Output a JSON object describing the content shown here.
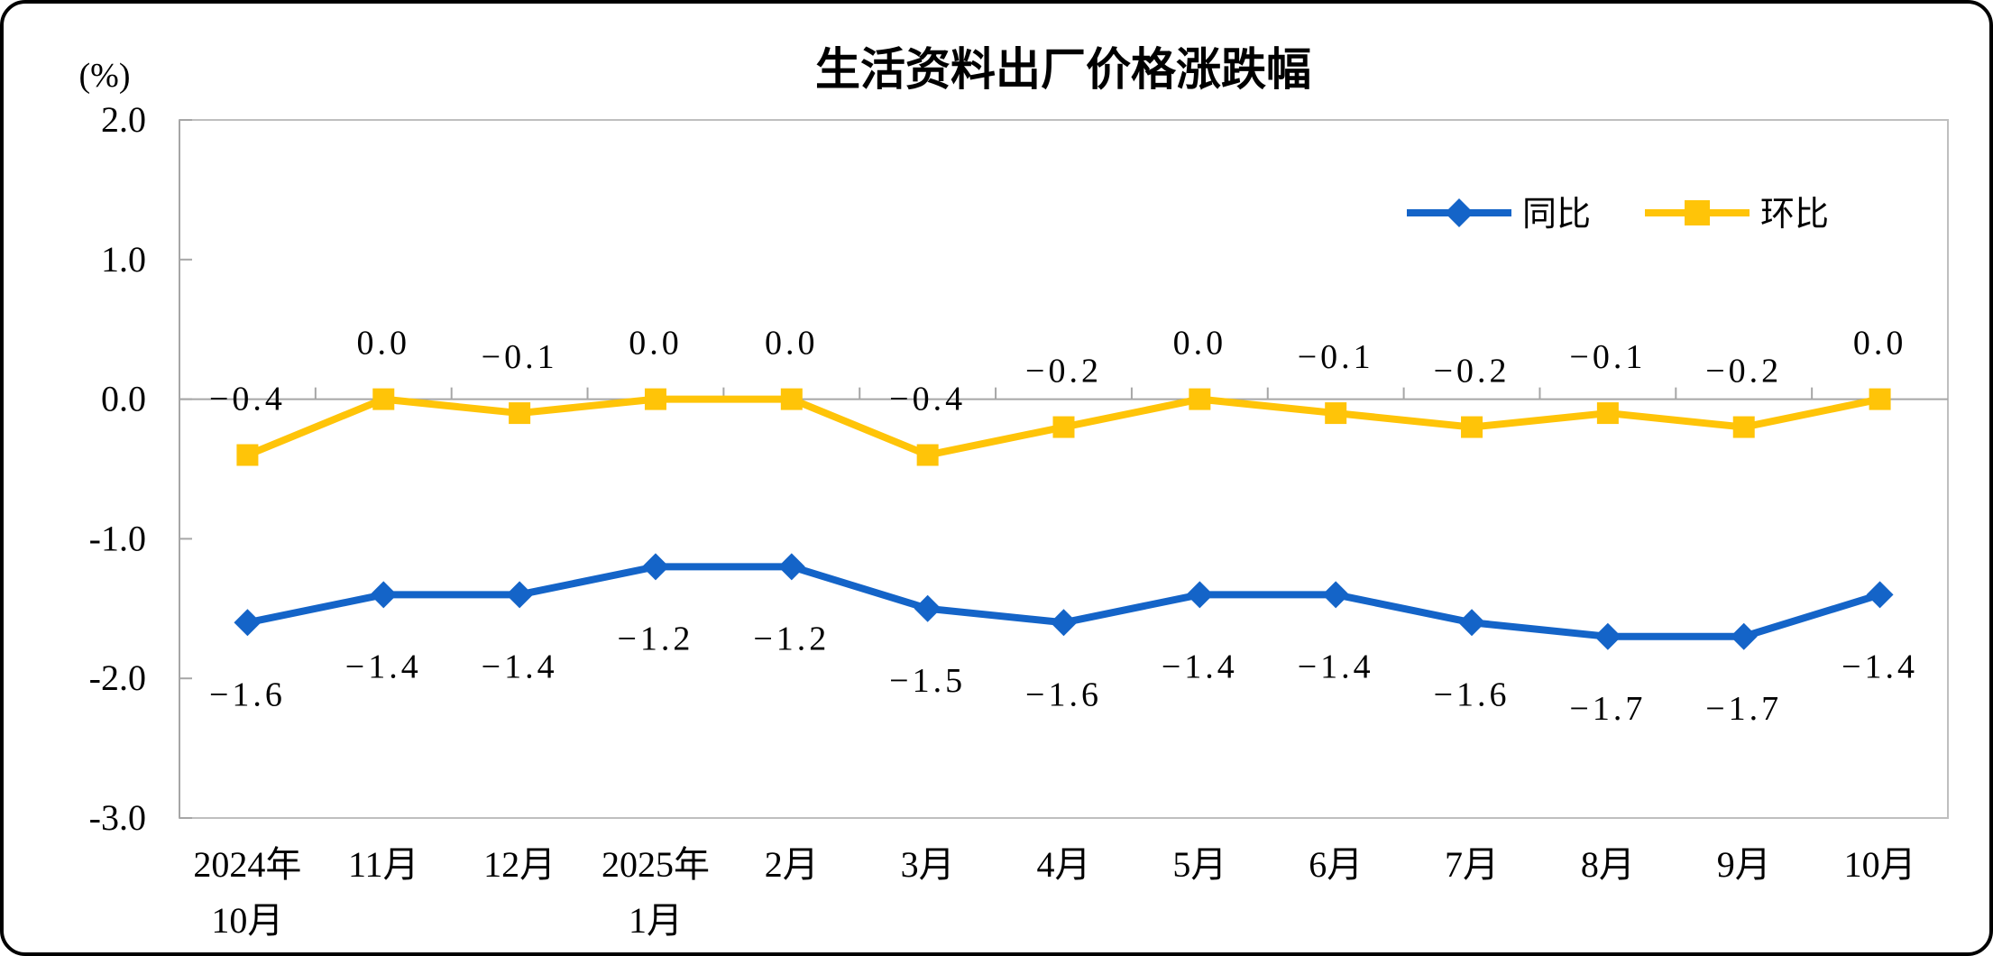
{
  "chart_data": {
    "type": "line",
    "title": "生活资料出厂价格涨跌幅",
    "unit_label": "(%)",
    "categories": [
      [
        "2024年",
        "10月"
      ],
      [
        "11月"
      ],
      [
        "12月"
      ],
      [
        "2025年",
        "1月"
      ],
      [
        "2月"
      ],
      [
        "3月"
      ],
      [
        "4月"
      ],
      [
        "5月"
      ],
      [
        "6月"
      ],
      [
        "7月"
      ],
      [
        "8月"
      ],
      [
        "9月"
      ],
      [
        "10月"
      ]
    ],
    "series": [
      {
        "name": "同比",
        "color": "#1464C8",
        "marker": "diamond",
        "label_position": "below",
        "values": [
          -1.6,
          -1.4,
          -1.4,
          -1.2,
          -1.2,
          -1.5,
          -1.6,
          -1.4,
          -1.4,
          -1.6,
          -1.7,
          -1.7,
          -1.4
        ],
        "labels": [
          "−1.6",
          "−1.4",
          "−1.4",
          "−1.2",
          "−1.2",
          "−1.5",
          "−1.6",
          "−1.4",
          "−1.4",
          "−1.6",
          "−1.7",
          "−1.7",
          "−1.4"
        ]
      },
      {
        "name": "环比",
        "color": "#FFC408",
        "marker": "square",
        "label_position": "above",
        "values": [
          -0.4,
          0.0,
          -0.1,
          0.0,
          0.0,
          -0.4,
          -0.2,
          0.0,
          -0.1,
          -0.2,
          -0.1,
          -0.2,
          0.0
        ],
        "labels": [
          "−0.4",
          "0.0",
          "−0.1",
          "0.0",
          "0.0",
          "−0.4",
          "−0.2",
          "0.0",
          "−0.1",
          "−0.2",
          "−0.1",
          "−0.2",
          "0.0"
        ]
      }
    ],
    "y_axis": {
      "min": -3.0,
      "max": 2.0,
      "step": 1.0,
      "tick_labels": [
        "2.0",
        "1.0",
        "0.0",
        "-1.0",
        "-2.0",
        "-3.0"
      ]
    },
    "legend_position": "top-right",
    "grid": "zero-line-only",
    "colors": {
      "grid": "#A6A6A6",
      "plot_border": "#BFBFBF",
      "text": "#000000"
    }
  }
}
